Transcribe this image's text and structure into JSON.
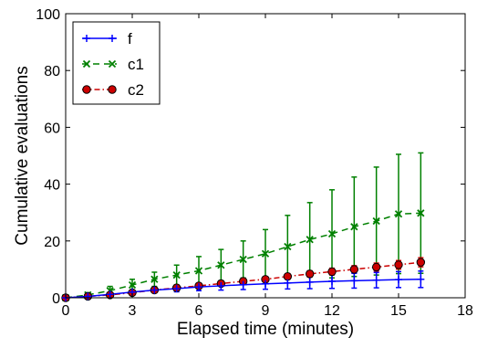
{
  "chart_data": {
    "type": "line",
    "title": "",
    "xlabel": "Elapsed time (minutes)",
    "ylabel": "Cumulative evaluations",
    "xlim": [
      0,
      18
    ],
    "ylim": [
      0,
      100
    ],
    "xticks": [
      "0",
      "3",
      "6",
      "9",
      "12",
      "15",
      "18"
    ],
    "yticks": [
      "0",
      "20",
      "40",
      "60",
      "80",
      "100"
    ],
    "x": [
      0,
      1,
      2,
      3,
      4,
      5,
      6,
      7,
      8,
      9,
      10,
      11,
      12,
      13,
      14,
      15,
      16
    ],
    "legend_position": "top-left",
    "grid": false,
    "series": [
      {
        "name": "f",
        "color": "#0000ff",
        "line_style": "solid",
        "marker": "plus",
        "values": [
          0,
          0.5,
          1.2,
          2.0,
          2.7,
          3.2,
          3.8,
          4.2,
          4.6,
          4.9,
          5.2,
          5.5,
          5.8,
          6.0,
          6.2,
          6.4,
          6.5
        ],
        "error": [
          0.1,
          0.3,
          0.5,
          0.7,
          0.9,
          1.1,
          1.3,
          1.5,
          1.7,
          1.9,
          2.1,
          2.3,
          2.5,
          2.6,
          2.7,
          2.8,
          2.9
        ]
      },
      {
        "name": "c1",
        "color": "#008000",
        "line_style": "dashed",
        "marker": "x",
        "values": [
          0,
          1.0,
          2.5,
          4.5,
          6.5,
          8.0,
          9.5,
          11.5,
          13.5,
          15.5,
          18.0,
          20.5,
          22.5,
          25.0,
          27.0,
          29.5,
          29.8
        ],
        "error": [
          0.2,
          0.8,
          1.5,
          2.0,
          2.5,
          3.5,
          5.0,
          5.5,
          6.5,
          8.5,
          11.0,
          13.0,
          15.5,
          17.5,
          19.0,
          21.0,
          21.2
        ]
      },
      {
        "name": "c2",
        "color": "#cc0000",
        "line_style": "dashdot",
        "marker": "circle",
        "values": [
          0,
          0.5,
          1.0,
          1.8,
          2.7,
          3.5,
          4.2,
          5.0,
          5.8,
          6.5,
          7.5,
          8.4,
          9.2,
          10.0,
          10.8,
          11.6,
          12.5
        ],
        "error": [
          0.1,
          0.2,
          0.3,
          0.4,
          0.4,
          0.5,
          0.6,
          0.7,
          0.8,
          0.9,
          1.0,
          1.1,
          1.2,
          1.3,
          1.4,
          1.5,
          1.6
        ]
      }
    ]
  }
}
